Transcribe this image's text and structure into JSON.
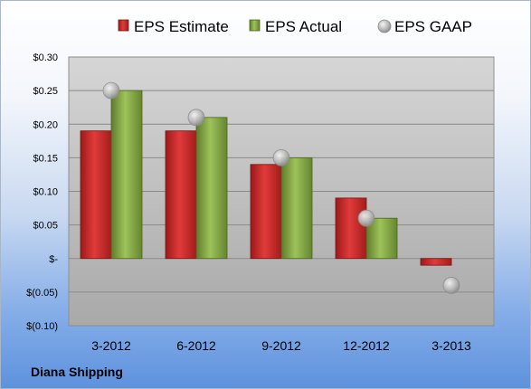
{
  "chart_data": {
    "type": "bar",
    "categories": [
      "3-2012",
      "6-2012",
      "9-2012",
      "12-2012",
      "3-2013"
    ],
    "series": [
      {
        "name": "EPS Estimate",
        "kind": "bar",
        "color": "#d42b2b",
        "values": [
          0.19,
          0.19,
          0.14,
          0.09,
          -0.01
        ]
      },
      {
        "name": "EPS Actual",
        "kind": "bar",
        "color": "#8eb34b",
        "values": [
          0.25,
          0.21,
          0.15,
          0.06,
          null
        ]
      },
      {
        "name": "EPS GAAP",
        "kind": "marker",
        "color": "#a9a9a9",
        "values": [
          0.25,
          0.21,
          0.15,
          0.06,
          -0.04
        ]
      }
    ],
    "ylim": [
      -0.1,
      0.3
    ],
    "yticks": [
      0.3,
      0.25,
      0.2,
      0.15,
      0.1,
      0.05,
      0.0,
      -0.05,
      -0.1
    ],
    "ytick_labels": [
      "$0.30",
      "$0.25",
      "$0.20",
      "$0.15",
      "$0.10",
      "$0.05",
      "$-",
      "$(0.05)",
      "$(0.10)"
    ],
    "grid": true,
    "legend": "top-center",
    "company": "Diana Shipping"
  }
}
